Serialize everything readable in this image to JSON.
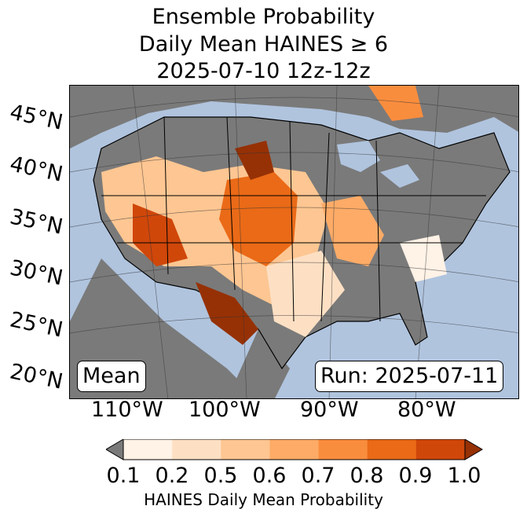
{
  "title": {
    "line1": "Ensemble Probability",
    "line2": "Daily Mean HAINES ≥ 6",
    "line3": "2025-07-10 12z-12z"
  },
  "map": {
    "latitude_labels": [
      "45°N",
      "40°N",
      "35°N",
      "30°N",
      "25°N",
      "20°N"
    ],
    "longitude_labels": [
      "110°W",
      "100°W",
      "90°W",
      "80°W"
    ],
    "stat_label": "Mean",
    "run_label": "Run: 2025-07-11",
    "colors": {
      "ocean": "#b0c4de",
      "land_masked": "#7a7a7a",
      "border": "#000000"
    }
  },
  "colorbar": {
    "tick_labels": [
      "0.1",
      "0.2",
      "0.5",
      "0.6",
      "0.7",
      "0.8",
      "0.9",
      "1.0"
    ],
    "colors": [
      "#fff2e6",
      "#fde0c4",
      "#fdc692",
      "#fdab67",
      "#f98d3e",
      "#ea6a17",
      "#d0470a",
      "#963105"
    ],
    "under_color": "#7a7a7a",
    "label": "HAINES Daily Mean Probability"
  }
}
